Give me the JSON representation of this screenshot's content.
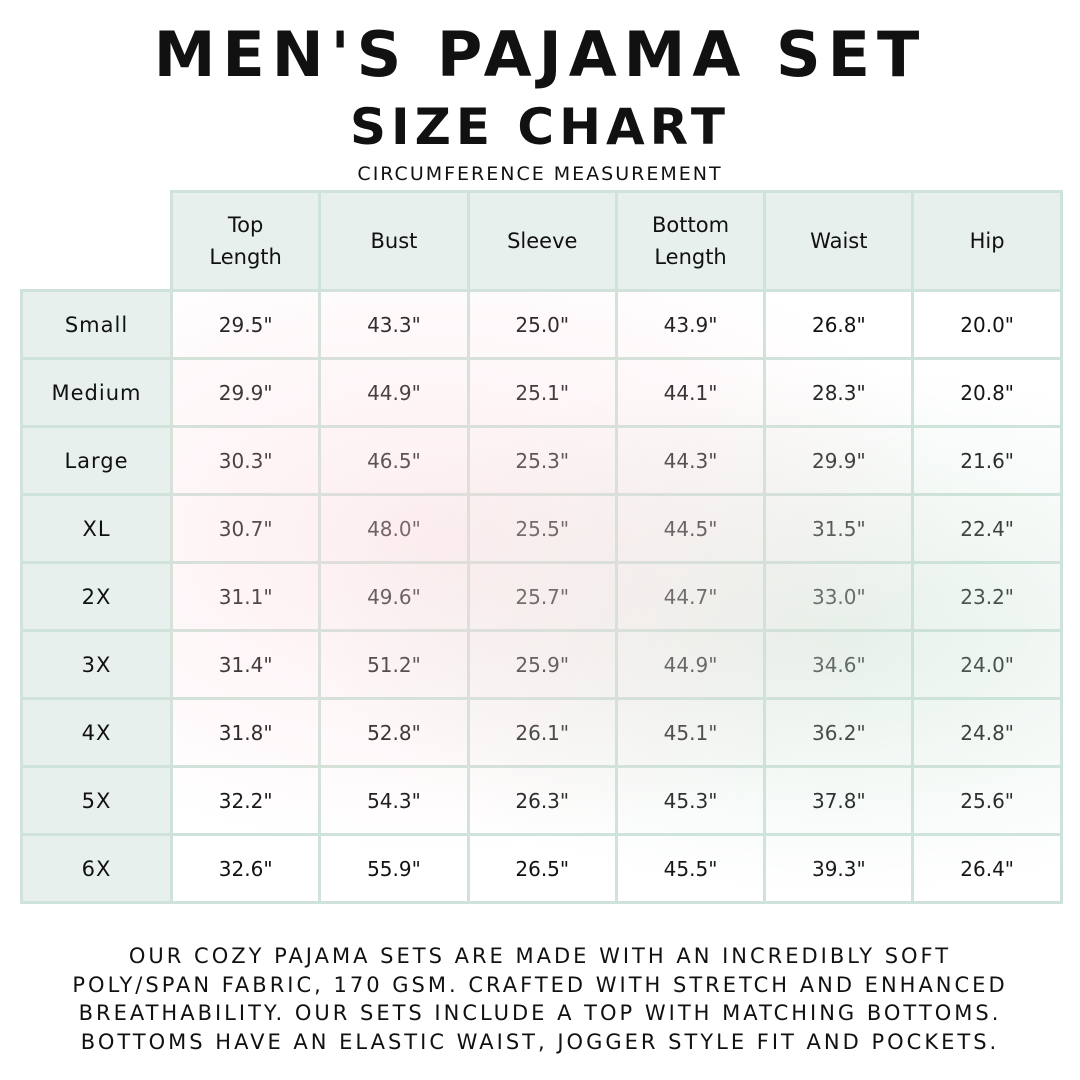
{
  "title": "MEN'S PAJAMA SET",
  "subtitle": "SIZE CHART",
  "caption": "CIRCUMFERENCE MEASUREMENT",
  "table": {
    "headers": [
      "Top\nLength",
      "Bust",
      "Sleeve",
      "Bottom\nLength",
      "Waist",
      "Hip"
    ],
    "rows": [
      {
        "size": "Small",
        "values": [
          "29.5\"",
          "43.3\"",
          "25.0\"",
          "43.9\"",
          "26.8\"",
          "20.0\""
        ]
      },
      {
        "size": "Medium",
        "values": [
          "29.9\"",
          "44.9\"",
          "25.1\"",
          "44.1\"",
          "28.3\"",
          "20.8\""
        ]
      },
      {
        "size": "Large",
        "values": [
          "30.3\"",
          "46.5\"",
          "25.3\"",
          "44.3\"",
          "29.9\"",
          "21.6\""
        ]
      },
      {
        "size": "XL",
        "values": [
          "30.7\"",
          "48.0\"",
          "25.5\"",
          "44.5\"",
          "31.5\"",
          "22.4\""
        ]
      },
      {
        "size": "2X",
        "values": [
          "31.1\"",
          "49.6\"",
          "25.7\"",
          "44.7\"",
          "33.0\"",
          "23.2\""
        ]
      },
      {
        "size": "3X",
        "values": [
          "31.4\"",
          "51.2\"",
          "25.9\"",
          "44.9\"",
          "34.6\"",
          "24.0\""
        ]
      },
      {
        "size": "4X",
        "values": [
          "31.8\"",
          "52.8\"",
          "26.1\"",
          "45.1\"",
          "36.2\"",
          "24.8\""
        ]
      },
      {
        "size": "5X",
        "values": [
          "32.2\"",
          "54.3\"",
          "26.3\"",
          "45.3\"",
          "37.8\"",
          "25.6\""
        ]
      },
      {
        "size": "6X",
        "values": [
          "32.6\"",
          "55.9\"",
          "26.5\"",
          "45.5\"",
          "39.3\"",
          "26.4\""
        ]
      }
    ]
  },
  "footer_lines": [
    "OUR COZY PAJAMA SETS ARE MADE WITH AN INCREDIBLY SOFT",
    "POLY/SPAN FABRIC, 170 GSM. CRAFTED WITH STRETCH AND ENHANCED",
    "BREATHABILITY. OUR SETS INCLUDE A TOP WITH MATCHING BOTTOMS.",
    "BOTTOMS HAVE AN ELASTIC WAIST, JOGGER STYLE FIT AND POCKETS."
  ],
  "colors": {
    "border": "#cfe3da",
    "header_bg": "#e7f0ec",
    "text": "#111111"
  }
}
